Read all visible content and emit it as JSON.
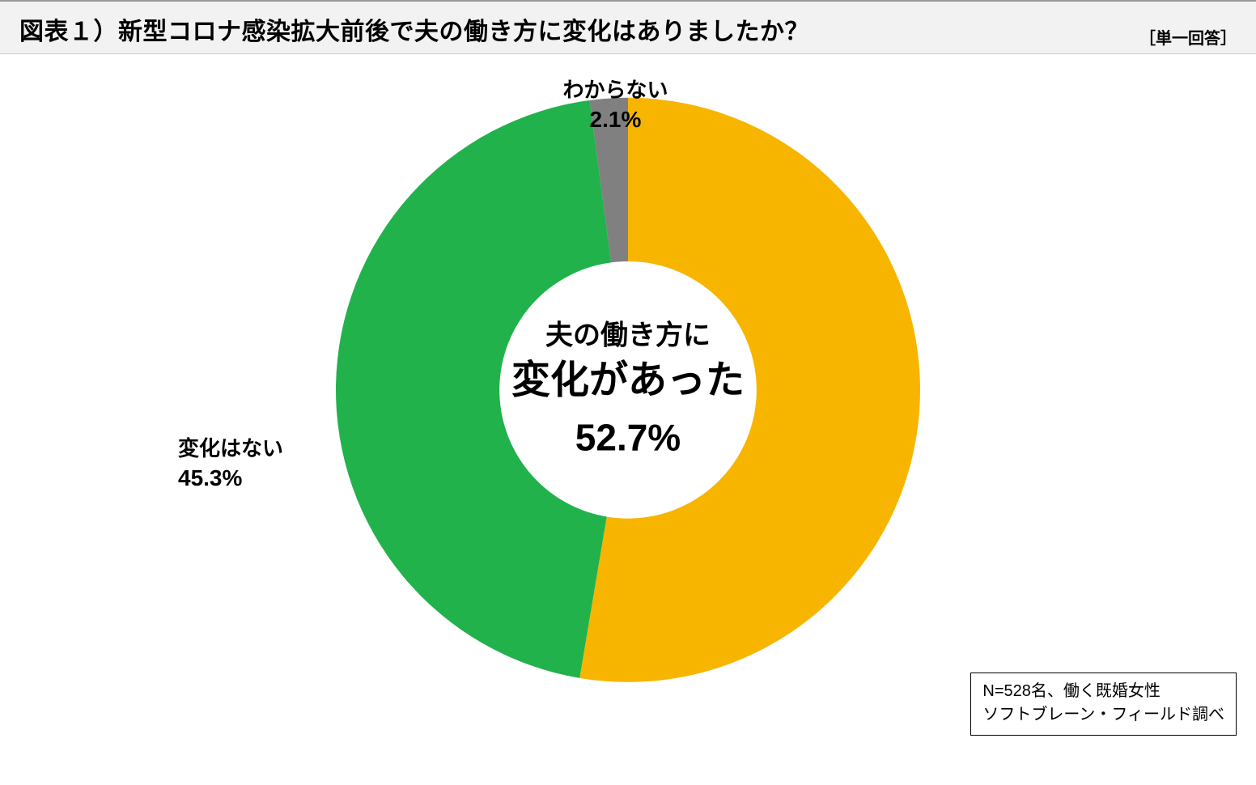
{
  "header": {
    "title": "図表１）新型コロナ感染拡大前後で夫の働き方に変化はありましたか？",
    "subtitle": "［単一回答］"
  },
  "chart": {
    "type": "donut",
    "background_color": "#ffffff",
    "inner_radius_ratio": 0.44,
    "outer_radius_ratio": 1.0,
    "start_angle_deg": 0,
    "slice_gap_deg": 0,
    "slices": [
      {
        "key": "changed",
        "label": "変化があった",
        "value": 52.7,
        "color": "#f7b500"
      },
      {
        "key": "no_change",
        "label": "変化はない",
        "value": 45.3,
        "color": "#21b24b"
      },
      {
        "key": "dont_know",
        "label": "わからない",
        "value": 2.1,
        "color": "#808080"
      }
    ],
    "center_text": {
      "line1": "夫の働き方に",
      "line2": "変化があった",
      "line3": "52.7%",
      "line1_fontsize": 34,
      "line2_fontsize": 48,
      "line3_fontsize": 46,
      "color": "#000000"
    },
    "external_labels": [
      {
        "for": "dont_know",
        "name": "わからない",
        "value_text": "2.1%",
        "position": "top"
      },
      {
        "for": "no_change",
        "name": "変化はない",
        "value_text": "45.3%",
        "position": "left"
      }
    ],
    "label_fontsize": 26,
    "value_fontsize": 28,
    "label_color": "#000000"
  },
  "note": {
    "line1": "N=528名、働く既婚女性",
    "line2": "ソフトブレーン・フィールド調べ",
    "border_color": "#000000",
    "fontsize": 20
  }
}
